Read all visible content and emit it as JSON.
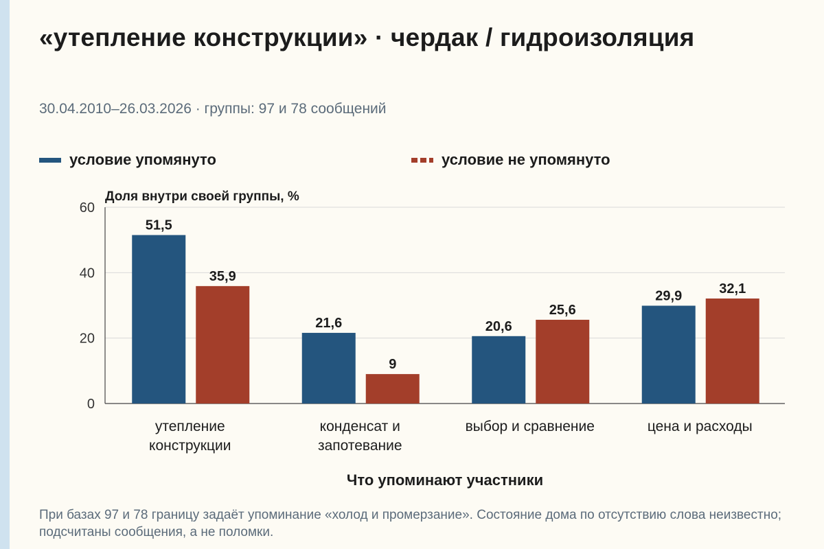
{
  "title": "«утепление конструкции» · чердак / гидроизоляция",
  "subtitle": "30.04.2010–26.03.2026 · группы: 97 и 78 сообщений",
  "legend": [
    {
      "label": "условие упомянуто",
      "color": "#24557e",
      "style": "solid"
    },
    {
      "label": "условие не упомянуто",
      "color": "#a33e2a",
      "style": "dashed"
    }
  ],
  "footnote": "При базах 97 и 78 границу задаёт упоминание «холод и промерзание». Состояние дома по отсутствию слова неизвестно; подсчитаны сообщения, а не поломки.",
  "chart_data": {
    "type": "bar",
    "ylabel": "Доля внутри своей группы, %",
    "xlabel": "Что упоминают участники",
    "ylim": [
      0,
      60
    ],
    "yticks": [
      0,
      20,
      40,
      60
    ],
    "grid": true,
    "categories": [
      [
        "утепление",
        "конструкции"
      ],
      [
        "конденсат и",
        "запотевание"
      ],
      [
        "выбор и сравнение"
      ],
      [
        "цена и расходы"
      ]
    ],
    "series": [
      {
        "name": "условие упомянуто",
        "color": "#24557e",
        "values": [
          51.5,
          21.6,
          20.6,
          29.9
        ],
        "labels": [
          "51,5",
          "21,6",
          "20,6",
          "29,9"
        ]
      },
      {
        "name": "условие не упомянуто",
        "color": "#a33e2a",
        "values": [
          35.9,
          9,
          25.6,
          32.1
        ],
        "labels": [
          "35,9",
          "9",
          "25,6",
          "32,1"
        ]
      }
    ]
  }
}
